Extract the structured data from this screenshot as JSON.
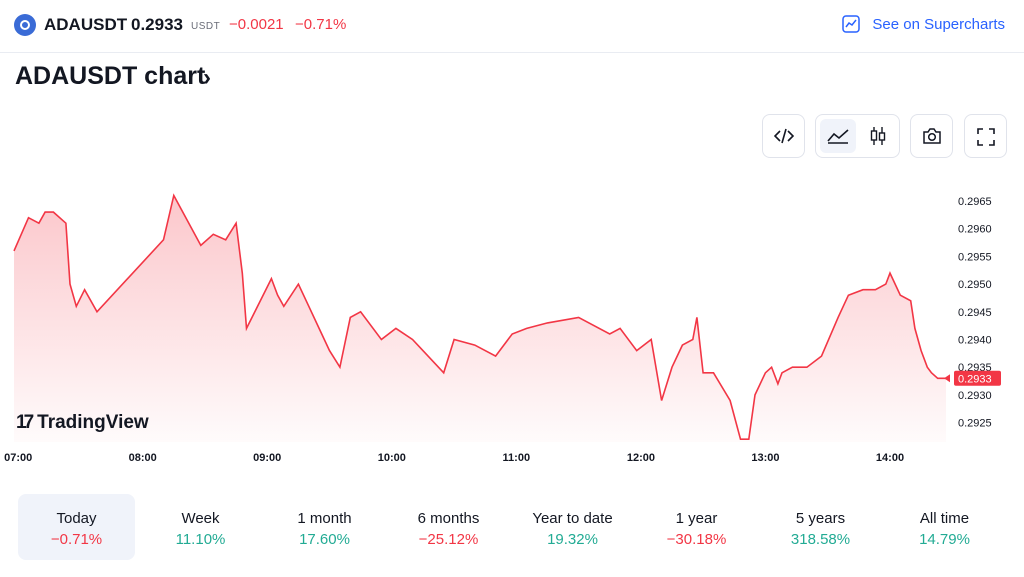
{
  "header": {
    "symbol": "ADAUSDT",
    "price": "0.2933",
    "currency": "USDT",
    "change": "−0.0021",
    "change_percent": "−0.71%",
    "supercharts_link": "See on Supercharts"
  },
  "title": "ADAUSDT chart",
  "toolbar": {
    "icons": [
      "code-icon",
      "area-chart-icon",
      "candles-icon",
      "camera-icon",
      "fullscreen-icon"
    ],
    "active": "area-chart-icon"
  },
  "watermark": "TradingView",
  "colors": {
    "line": "#f23645",
    "negative": "#f23645",
    "positive": "#22ab94",
    "link": "#2962ff",
    "active_bg": "#f0f3fa"
  },
  "chart_data": {
    "type": "area",
    "title": "",
    "xlabel": "",
    "ylabel": "",
    "xlim": [
      "06:58",
      "14:27"
    ],
    "ylim": [
      0.29215,
      0.29688
    ],
    "x_ticks": [
      "07:00",
      "08:00",
      "09:00",
      "10:00",
      "11:00",
      "12:00",
      "13:00",
      "14:00"
    ],
    "y_ticks": [
      "0.2965",
      "0.2960",
      "0.2955",
      "0.2950",
      "0.2945",
      "0.2940",
      "0.2935",
      "0.2930",
      "0.2925"
    ],
    "last_price_label": "0.2933",
    "series": [
      {
        "x": [
          "06:58",
          "07:05",
          "07:10",
          "07:13",
          "07:17",
          "07:23",
          "07:25",
          "07:28",
          "07:32",
          "07:38",
          "08:10",
          "08:15",
          "08:28",
          "08:34",
          "08:40",
          "08:45",
          "08:48",
          "08:50",
          "09:02",
          "09:05",
          "09:08",
          "09:15",
          "09:20",
          "09:25",
          "09:30",
          "09:35",
          "09:40",
          "09:45",
          "09:55",
          "10:02",
          "10:10",
          "10:15",
          "10:20",
          "10:25",
          "10:30",
          "10:40",
          "10:50",
          "10:58",
          "11:05",
          "11:15",
          "11:30",
          "11:45",
          "11:50",
          "11:58",
          "12:05",
          "12:10",
          "12:15",
          "12:20",
          "12:25",
          "12:27",
          "12:30",
          "12:35",
          "12:43",
          "12:48",
          "12:52",
          "12:55",
          "13:00",
          "13:03",
          "13:06",
          "13:08",
          "13:13",
          "13:20",
          "13:27",
          "13:35",
          "13:40",
          "13:47",
          "13:53",
          "13:58",
          "14:00",
          "14:05",
          "14:10",
          "14:12",
          "14:15",
          "14:18",
          "14:20",
          "14:23",
          "14:25",
          "14:27"
        ],
        "y": [
          0.2956,
          0.2962,
          0.2961,
          0.2963,
          0.2963,
          0.2961,
          0.295,
          0.2946,
          0.2949,
          0.2945,
          0.2958,
          0.2966,
          0.2957,
          0.2959,
          0.2958,
          0.2961,
          0.2952,
          0.2942,
          0.2951,
          0.2948,
          0.2946,
          0.295,
          0.2946,
          0.2942,
          0.2938,
          0.2935,
          0.2944,
          0.2945,
          0.294,
          0.2942,
          0.294,
          0.2938,
          0.2936,
          0.2934,
          0.294,
          0.2939,
          0.2937,
          0.2941,
          0.2942,
          0.2943,
          0.2944,
          0.2941,
          0.2942,
          0.2938,
          0.294,
          0.2929,
          0.2935,
          0.2939,
          0.294,
          0.2944,
          0.2934,
          0.2934,
          0.2929,
          0.2922,
          0.2922,
          0.293,
          0.2934,
          0.2935,
          0.2932,
          0.2934,
          0.2935,
          0.2935,
          0.2937,
          0.2944,
          0.2948,
          0.2949,
          0.2949,
          0.295,
          0.2952,
          0.2948,
          0.2947,
          0.2942,
          0.2938,
          0.2935,
          0.2934,
          0.2933,
          0.2933,
          0.2933
        ]
      }
    ]
  },
  "performance": [
    {
      "label": "Today",
      "value": "−0.71%",
      "sign": "neg",
      "active": true
    },
    {
      "label": "Week",
      "value": "11.10%",
      "sign": "pos"
    },
    {
      "label": "1 month",
      "value": "17.60%",
      "sign": "pos"
    },
    {
      "label": "6 months",
      "value": "−25.12%",
      "sign": "neg"
    },
    {
      "label": "Year to date",
      "value": "19.32%",
      "sign": "pos"
    },
    {
      "label": "1 year",
      "value": "−30.18%",
      "sign": "neg"
    },
    {
      "label": "5 years",
      "value": "318.58%",
      "sign": "pos"
    },
    {
      "label": "All time",
      "value": "14.79%",
      "sign": "pos"
    }
  ]
}
